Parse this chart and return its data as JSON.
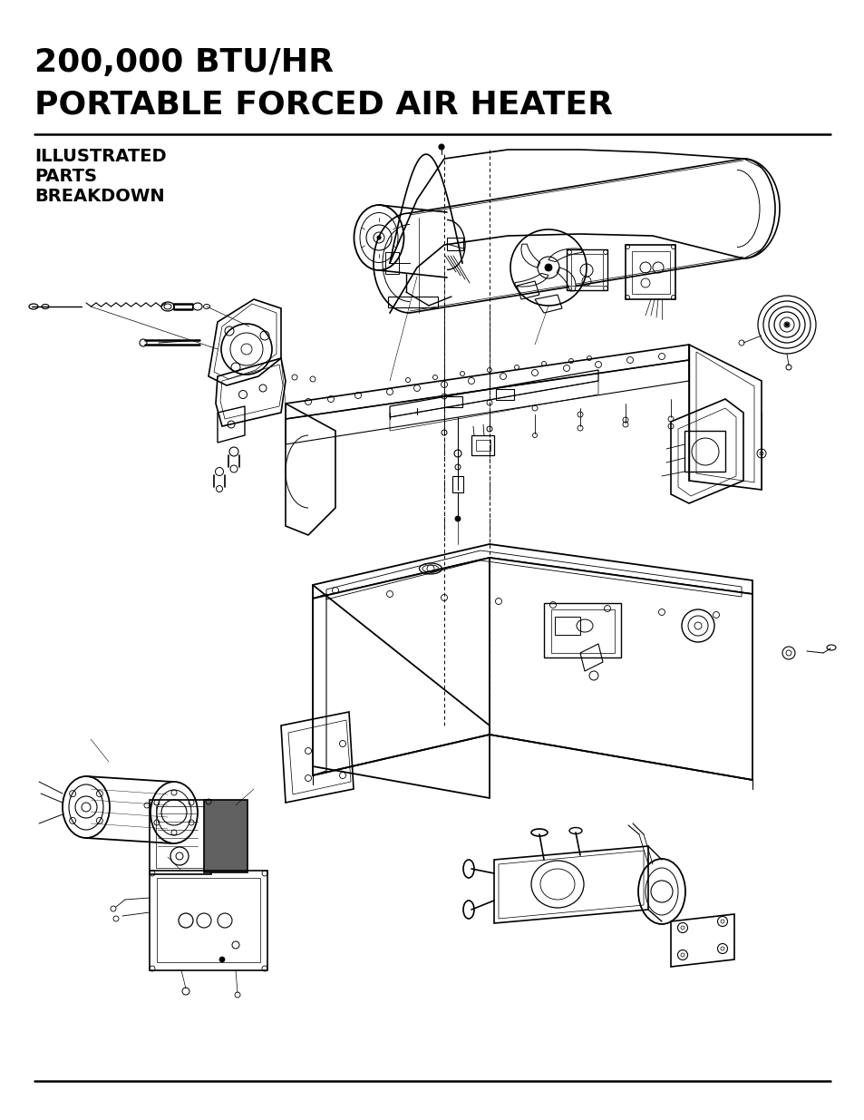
{
  "title_line1": "200,000 BTU/HR",
  "title_line2": "PORTABLE FORCED AIR HEATER",
  "subtitle_line1": "ILLUSTRATED",
  "subtitle_line2": "PARTS",
  "subtitle_line3": "BREAKDOWN",
  "bg_color": "#ffffff",
  "text_color": "#000000",
  "title_fontsize": 26,
  "subtitle_fontsize": 14,
  "fig_width": 9.54,
  "fig_height": 12.35,
  "dpi": 100
}
